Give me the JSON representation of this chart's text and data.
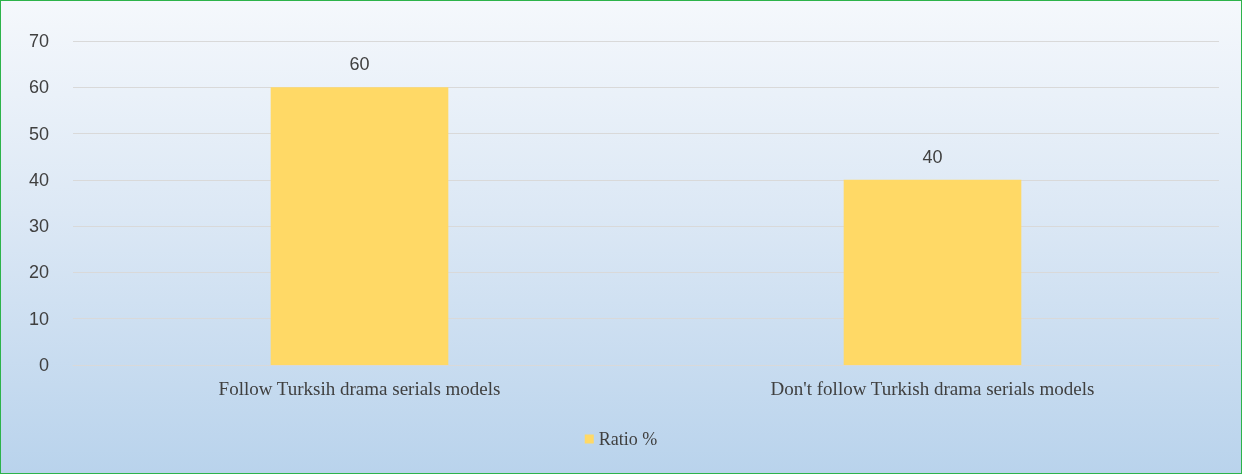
{
  "chart_data": {
    "type": "bar",
    "categories": [
      "Follow Turksih drama serials models",
      "Don't follow Turkish drama serials models"
    ],
    "series": [
      {
        "name": "Ratio %",
        "color": "#ffd966",
        "values": [
          60,
          40
        ]
      }
    ],
    "ylim": [
      0,
      70
    ],
    "yticks": [
      0,
      10,
      20,
      30,
      40,
      50,
      60,
      70
    ],
    "grid": "y",
    "legend": "bottom",
    "data_labels": true
  }
}
